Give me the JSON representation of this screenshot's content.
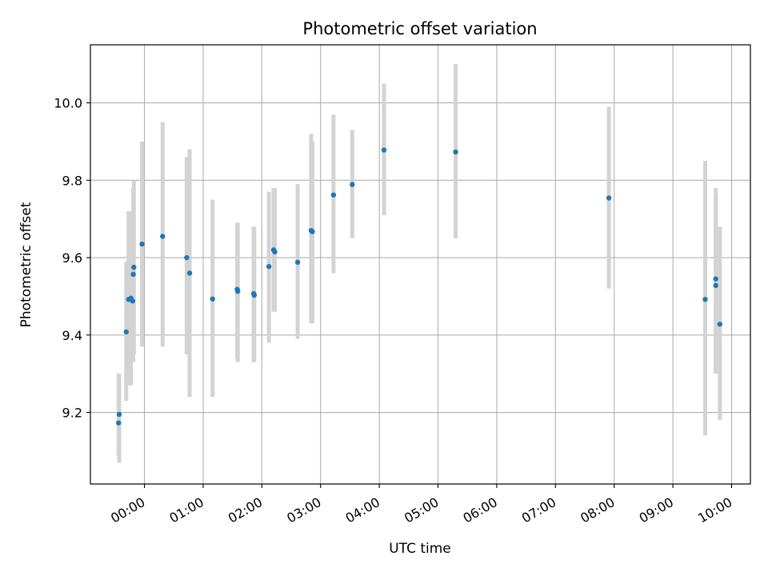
{
  "chart_data": {
    "type": "scatter",
    "title": "Photometric offset variation",
    "xlabel": "UTC time",
    "ylabel": "Photometric offset",
    "x_ticks": [
      "00:00",
      "01:00",
      "02:00",
      "03:00",
      "04:00",
      "05:00",
      "06:00",
      "07:00",
      "08:00",
      "09:00",
      "10:00"
    ],
    "y_ticks": [
      "9.2",
      "9.4",
      "9.6",
      "9.8",
      "10.0"
    ],
    "x_unit": "hours after 00:00 UTC",
    "xlim": [
      -0.92,
      10.32
    ],
    "ylim": [
      9.015,
      10.15
    ],
    "grid": true,
    "colors": {
      "marker": "#1f77b4",
      "errorbar": "#d3d3d3",
      "grid": "#b0b0b0"
    },
    "points": [
      {
        "x": -0.43,
        "y": 9.195,
        "ylo": 9.07,
        "yhi": 9.3
      },
      {
        "x": -0.44,
        "y": 9.173,
        "ylo": 9.09,
        "yhi": 9.3
      },
      {
        "x": -0.31,
        "y": 9.408,
        "ylo": 9.23,
        "yhi": 9.59
      },
      {
        "x": -0.27,
        "y": 9.492,
        "ylo": 9.27,
        "yhi": 9.72
      },
      {
        "x": -0.23,
        "y": 9.495,
        "ylo": 9.27,
        "yhi": 9.72
      },
      {
        "x": -0.2,
        "y": 9.488,
        "ylo": 9.35,
        "yhi": 9.7
      },
      {
        "x": -0.19,
        "y": 9.557,
        "ylo": 9.33,
        "yhi": 9.78
      },
      {
        "x": -0.18,
        "y": 9.575,
        "ylo": 9.35,
        "yhi": 9.8
      },
      {
        "x": -0.04,
        "y": 9.635,
        "ylo": 9.37,
        "yhi": 9.9
      },
      {
        "x": 0.31,
        "y": 9.655,
        "ylo": 9.37,
        "yhi": 9.95
      },
      {
        "x": 0.72,
        "y": 9.6,
        "ylo": 9.35,
        "yhi": 9.86
      },
      {
        "x": 0.77,
        "y": 9.56,
        "ylo": 9.24,
        "yhi": 9.88
      },
      {
        "x": 1.16,
        "y": 9.493,
        "ylo": 9.24,
        "yhi": 9.75
      },
      {
        "x": 1.58,
        "y": 9.518,
        "ylo": 9.34,
        "yhi": 9.69
      },
      {
        "x": 1.59,
        "y": 9.513,
        "ylo": 9.33,
        "yhi": 9.69
      },
      {
        "x": 1.86,
        "y": 9.507,
        "ylo": 9.33,
        "yhi": 9.68
      },
      {
        "x": 1.87,
        "y": 9.503,
        "ylo": 9.33,
        "yhi": 9.68
      },
      {
        "x": 2.12,
        "y": 9.577,
        "ylo": 9.38,
        "yhi": 9.77
      },
      {
        "x": 2.2,
        "y": 9.62,
        "ylo": 9.46,
        "yhi": 9.78
      },
      {
        "x": 2.22,
        "y": 9.615,
        "ylo": 9.46,
        "yhi": 9.78
      },
      {
        "x": 2.61,
        "y": 9.588,
        "ylo": 9.39,
        "yhi": 9.79
      },
      {
        "x": 2.84,
        "y": 9.67,
        "ylo": 9.43,
        "yhi": 9.92
      },
      {
        "x": 2.86,
        "y": 9.667,
        "ylo": 9.43,
        "yhi": 9.9
      },
      {
        "x": 3.22,
        "y": 9.762,
        "ylo": 9.56,
        "yhi": 9.97
      },
      {
        "x": 3.54,
        "y": 9.789,
        "ylo": 9.65,
        "yhi": 9.93
      },
      {
        "x": 4.08,
        "y": 9.878,
        "ylo": 9.71,
        "yhi": 10.05
      },
      {
        "x": 5.3,
        "y": 9.873,
        "ylo": 9.65,
        "yhi": 10.1
      },
      {
        "x": 7.91,
        "y": 9.754,
        "ylo": 9.52,
        "yhi": 9.99
      },
      {
        "x": 9.55,
        "y": 9.492,
        "ylo": 9.14,
        "yhi": 9.85
      },
      {
        "x": 9.73,
        "y": 9.545,
        "ylo": 9.3,
        "yhi": 9.78
      },
      {
        "x": 9.73,
        "y": 9.528,
        "ylo": 9.3,
        "yhi": 9.76
      },
      {
        "x": 9.8,
        "y": 9.428,
        "ylo": 9.18,
        "yhi": 9.68
      }
    ]
  }
}
